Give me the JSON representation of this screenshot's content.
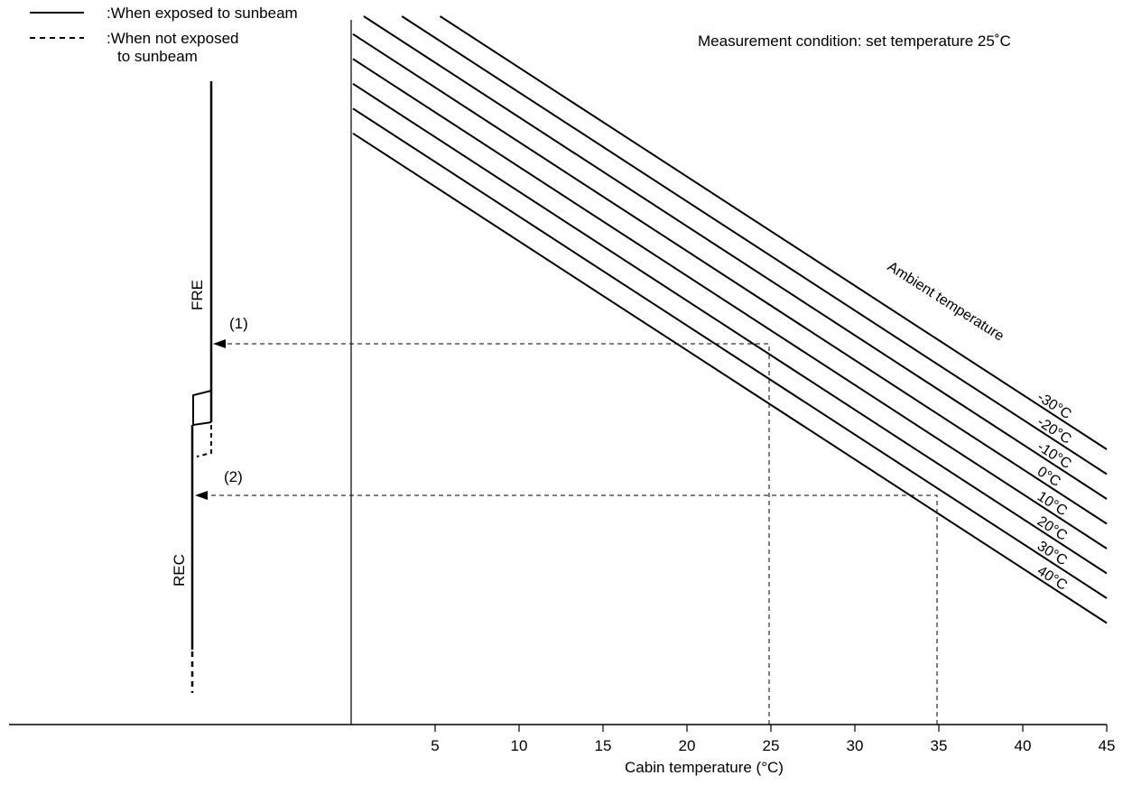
{
  "chart_data": {
    "type": "line",
    "title": "",
    "condition": "Measurement condition: set temperature 25˚C",
    "xlabel": "Cabin temperature (°C)",
    "ylabel": "",
    "x_ticks": [
      "5",
      "10",
      "15",
      "20",
      "25",
      "30",
      "35",
      "40",
      "45"
    ],
    "xlim": [
      0,
      45
    ],
    "legend": {
      "position": "top-left",
      "entries": [
        {
          "style": "solid",
          "label": ":When exposed to sunbeam"
        },
        {
          "style": "dashed",
          "label_line1": ":When not exposed",
          "label_line2": "to sunbeam"
        }
      ]
    },
    "ambient_label": "Ambient temperature",
    "series_unit": "°C",
    "series": [
      {
        "name": "-30°C",
        "ambient": -30
      },
      {
        "name": "-20°C",
        "ambient": -20
      },
      {
        "name": "-10°C",
        "ambient": -10
      },
      {
        "name": "0°C",
        "ambient": 0
      },
      {
        "name": "10°C",
        "ambient": 10
      },
      {
        "name": "20°C",
        "ambient": 20
      },
      {
        "name": "30°C",
        "ambient": 30
      },
      {
        "name": "40°C",
        "ambient": 40
      }
    ],
    "mode_labels": {
      "upper": "FRE",
      "lower": "REC"
    },
    "examples": [
      {
        "label": "(1)",
        "cabin_temperature": 25,
        "series": "40°C",
        "result": "FRE"
      },
      {
        "label": "(2)",
        "cabin_temperature": 35,
        "series": "40°C",
        "result": "REC"
      }
    ],
    "grid": false
  }
}
